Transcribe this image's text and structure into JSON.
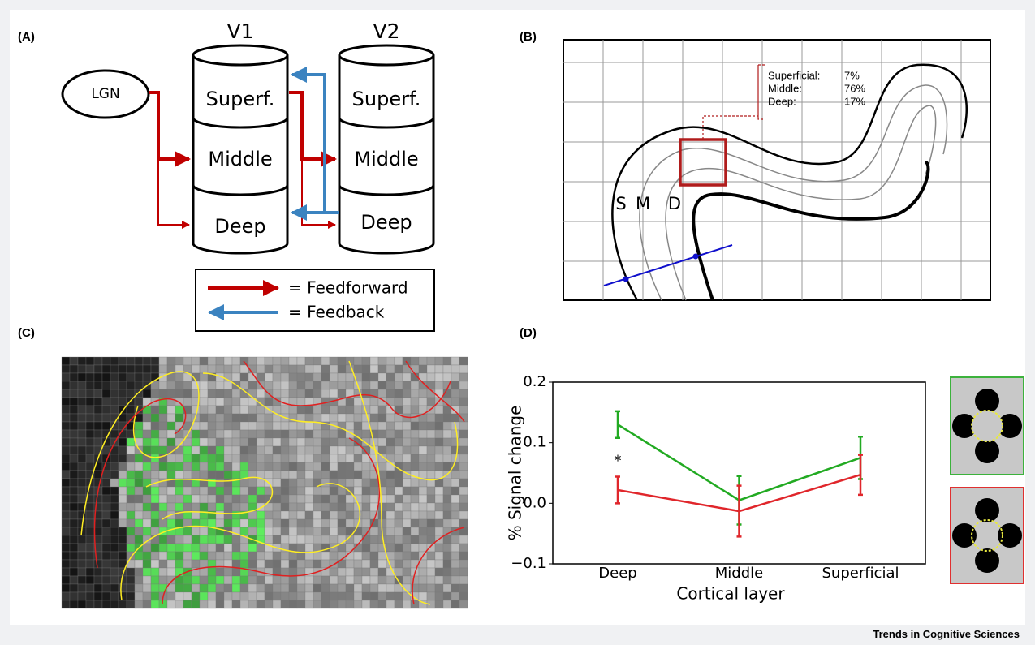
{
  "figure": {
    "panel_labels": [
      "(A)",
      "(B)",
      "(C)",
      "(D)"
    ],
    "a": {
      "v1": "V1",
      "v2": "V2",
      "lgn": "LGN",
      "v1_layers": [
        "Superf.",
        "Middle",
        "Deep"
      ],
      "v2_layers": [
        "Superf.",
        "Middle",
        "Deep"
      ],
      "legend": [
        "= Feedforward",
        "= Feedback"
      ]
    },
    "b": {
      "rows": [
        [
          "Superficial:",
          "7%"
        ],
        [
          "Middle:",
          "76%"
        ],
        [
          "Deep:",
          "17%"
        ]
      ],
      "layer_letters": [
        "S",
        "M",
        "D"
      ]
    }
  },
  "chart_data": {
    "type": "line",
    "x_label": "Cortical layer",
    "y_label": "% Signal change",
    "categories": [
      "Deep",
      "Middle",
      "Superficial"
    ],
    "series": [
      {
        "color": "#22aa22",
        "values": [
          0.13,
          0.005,
          0.075
        ],
        "errors": [
          0.022,
          0.04,
          0.035
        ]
      },
      {
        "color": "#e0262b",
        "values": [
          0.022,
          -0.013,
          0.047
        ],
        "errors": [
          0.022,
          0.042,
          0.033
        ]
      }
    ],
    "ylim": [
      -0.1,
      0.2
    ],
    "yticks": [
      {
        "value": -0.1,
        "label": "−0.1"
      },
      {
        "value": 0,
        "label": "0.0"
      },
      0.1,
      0.2
    ],
    "annotation": "*"
  },
  "footer": "Trends in Cognitive Sciences"
}
